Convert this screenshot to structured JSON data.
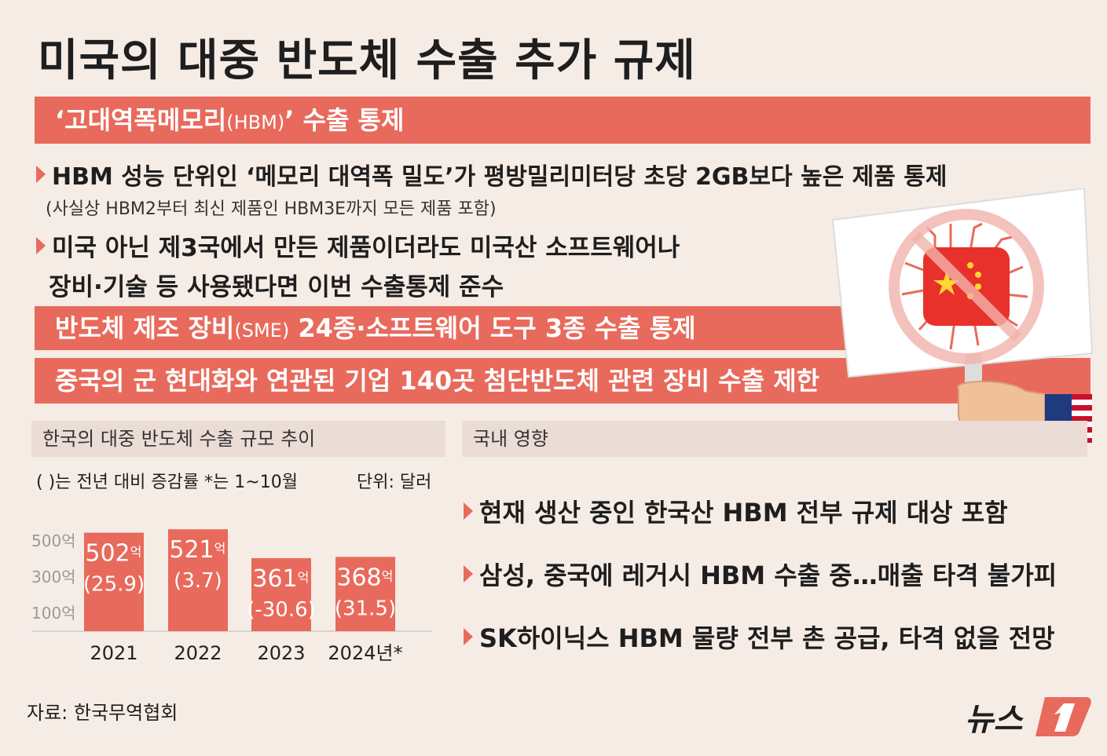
{
  "title": "미국의 대중 반도체 수출 추가 규제",
  "band1": {
    "pre": "‘고대역폭메모리",
    "small": "(HBM)",
    "post": "’ 수출 통제"
  },
  "bullet1": "HBM 성능 단위인 ‘메모리 대역폭 밀도’가 평방밀리미터당 초당 2GB보다 높은 제품 통제",
  "bullet1_note": "(사실상 HBM2부터 최신 제품인 HBM3E까지 모든 제품 포함)",
  "bullet2_line1": "미국 아닌 제3국에서 만든 제품이더라도 미국산 소프트웨어나",
  "bullet2_line2": "장비·기술 등 사용됐다면 이번 수출통제 준수",
  "band2": {
    "pre": "반도체 제조 장비",
    "small": "(SME)",
    "post": " 24종·소프트웨어 도구 3종 수출 통제"
  },
  "band3": "중국의 군 현대화와 연관된 기업 140곳 첨단반도체 관련 장비 수출 제한",
  "section_left": "한국의 대중 반도체 수출 규모 추이",
  "section_right": "국내 영향",
  "chart_note": "( )는 전년 대비 증감률  *는 1~10월",
  "unit": "단위: 달러",
  "impacts": [
    "현재 생산 중인 한국산 HBM 전부 규제 대상 포함",
    "삼성, 중국에 레거시 HBM 수출 중…매출 타격 불가피",
    "SK하이닉스 HBM 물량 전부 촌 공급, 타격 없을 전망"
  ],
  "source": "자료: 한국무역협회",
  "logo": "뉴스",
  "colors": {
    "accent": "#e86a5c",
    "background": "#f6ece6",
    "section": "#ebdcd5"
  },
  "chart_data": {
    "type": "bar",
    "categories": [
      "2021",
      "2022",
      "2023",
      "2024년*"
    ],
    "values": [
      502,
      521,
      361,
      368
    ],
    "value_unit": "억",
    "changes": [
      "(25.9)",
      "(3.7)",
      "(-30.6)",
      "(31.5)"
    ],
    "ylim": [
      0,
      600
    ],
    "yticks": [
      100,
      300,
      500
    ],
    "ytick_labels": [
      "100억",
      "300억",
      "500억"
    ],
    "grid": false
  }
}
